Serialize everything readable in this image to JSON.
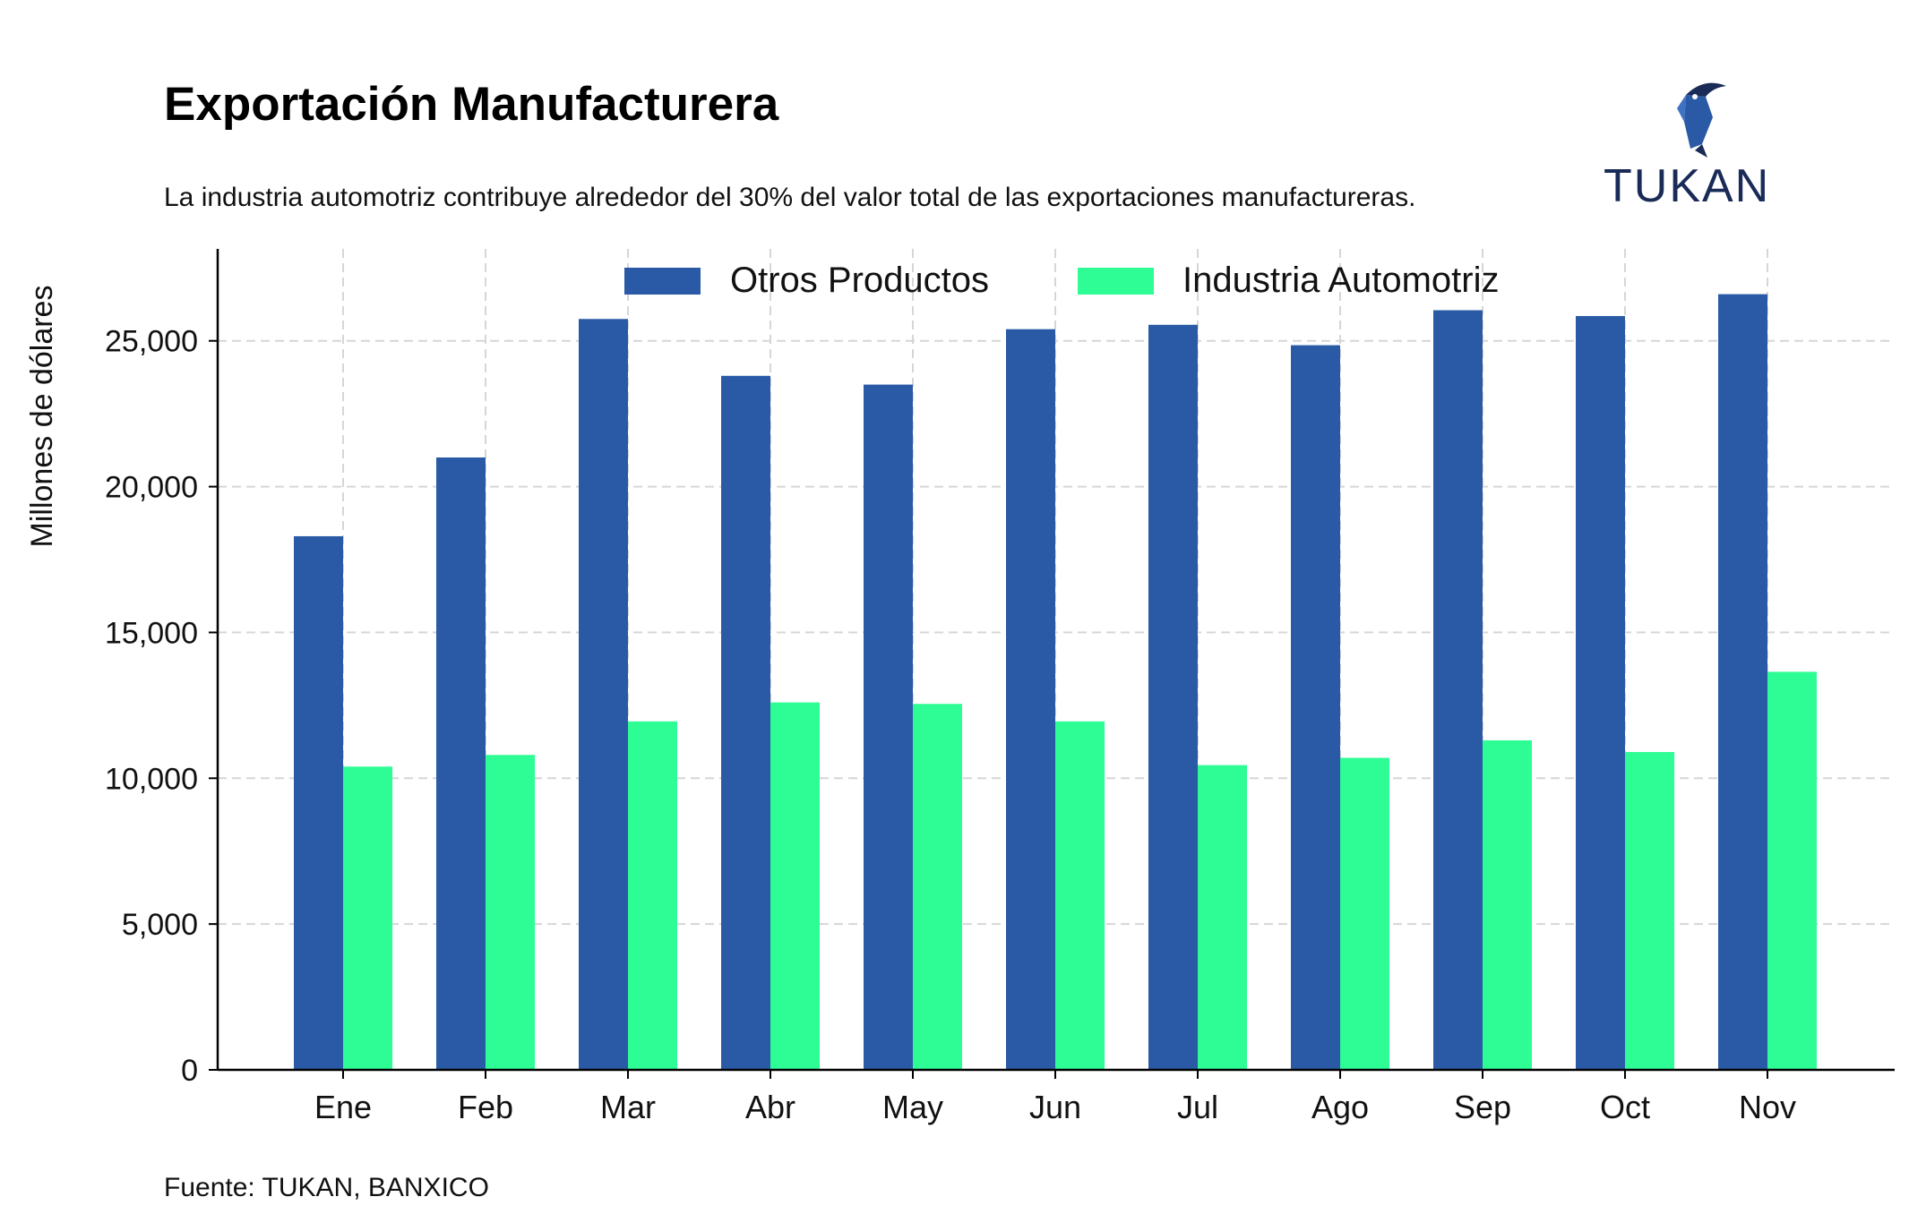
{
  "header": {
    "title": "Exportación Manufacturera",
    "subtitle": "La industria automotriz contribuye alrededor del 30% del valor total de las exportaciones manufactureras."
  },
  "footer": {
    "source": "Fuente: TUKAN, BANXICO"
  },
  "logo": {
    "text": "TUKAN",
    "icon": "toucan-icon",
    "color": "#1a2b57"
  },
  "chart_data": {
    "type": "bar",
    "categories": [
      "Ene",
      "Feb",
      "Mar",
      "Abr",
      "May",
      "Jun",
      "Jul",
      "Ago",
      "Sep",
      "Oct",
      "Nov"
    ],
    "series": [
      {
        "name": "Otros Productos",
        "color": "#2a5aa5",
        "values": [
          18300,
          21000,
          25750,
          23800,
          23500,
          25400,
          25550,
          24850,
          26050,
          25850,
          26600
        ]
      },
      {
        "name": "Industria Automotriz",
        "color": "#2efc95",
        "values": [
          10400,
          10800,
          11950,
          12600,
          12550,
          11950,
          10450,
          10700,
          11300,
          10900,
          13650
        ]
      }
    ],
    "ylabel": "Millones de dólares",
    "xlabel": "",
    "ylim": [
      0,
      28000
    ],
    "yticks": [
      0,
      5000,
      10000,
      15000,
      20000,
      25000
    ],
    "ytick_labels": [
      "0",
      "5,000",
      "10,000",
      "15,000",
      "20,000",
      "25,000"
    ],
    "grid": true,
    "legend": "top-center"
  }
}
